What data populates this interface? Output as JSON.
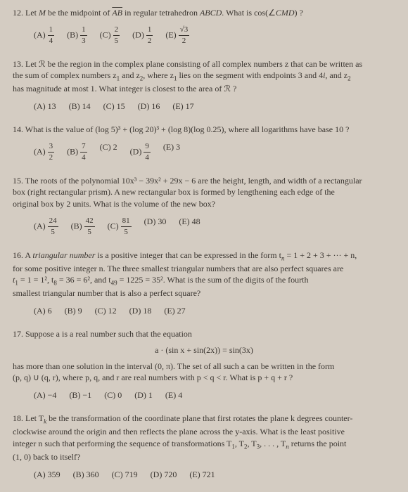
{
  "questions": [
    {
      "num": "12.",
      "text_before": "Let ",
      "text_mid": " be the midpoint of ",
      "text_after": " in regular tetrahedron ",
      "tetra": "ABCD",
      "text_end": ". What is cos(∠",
      "angle": "CMD",
      "text_close": ") ?",
      "choices": {
        "A": {
          "label": "(A)",
          "num": "1",
          "den": "4"
        },
        "B": {
          "label": "(B)",
          "num": "1",
          "den": "3"
        },
        "C": {
          "label": "(C)",
          "num": "2",
          "den": "5"
        },
        "D": {
          "label": "(D)",
          "num": "1",
          "den": "2"
        },
        "E": {
          "label": "(E)",
          "num": "√3",
          "den": "2"
        }
      }
    },
    {
      "num": "13.",
      "line1": "Let ℛ be the region in the complex plane consisting of all complex numbers z that can be written as",
      "line2a": "the sum of complex numbers z",
      "line2b": " and z",
      "line2c": ", where z",
      "line2d": " lies on the segment with endpoints 3 and 4",
      "line2e": ", and z",
      "line3": "has magnitude at most 1. What integer is closest to the area of ℛ ?",
      "choices": {
        "A": "(A) 13",
        "B": "(B) 14",
        "C": "(C) 15",
        "D": "(D) 16",
        "E": "(E) 17"
      }
    },
    {
      "num": "14.",
      "text": "What is the value of (log 5)³ + (log 20)³ + (log 8)(log 0.25), where all logarithms have base 10 ?",
      "choices": {
        "A": {
          "label": "(A)",
          "num": "3",
          "den": "2"
        },
        "B": {
          "label": "(B)",
          "num": "7",
          "den": "4"
        },
        "C": "(C) 2",
        "D": {
          "label": "(D)",
          "num": "9",
          "den": "4"
        },
        "E": "(E) 3"
      }
    },
    {
      "num": "15.",
      "line1": "The roots of the polynomial 10x³ − 39x² + 29x − 6 are the height, length, and width of a rectangular",
      "line2": "box (right rectangular prism). A new rectangular box is formed by lengthening each edge of the",
      "line3": "original box by 2 units. What is the volume of the new box?",
      "choices": {
        "A": {
          "label": "(A)",
          "num": "24",
          "den": "5"
        },
        "B": {
          "label": "(B)",
          "num": "42",
          "den": "5"
        },
        "C": {
          "label": "(C)",
          "num": "81",
          "den": "5"
        },
        "D": "(D) 30",
        "E": "(E) 48"
      }
    },
    {
      "num": "16.",
      "line1a": "A ",
      "line1b": "triangular number",
      "line1c": " is a positive integer that can be expressed in the form t",
      "line1d": " = 1 + 2 + 3 + ··· + n,",
      "line2": "for some positive integer n. The three smallest triangular numbers that are also perfect squares are",
      "line3a": "t",
      "line3b": " = 1 = 1², t",
      "line3c": " = 36 = 6², and t",
      "line3d": " = 1225 = 35². What is the sum of the digits of the fourth",
      "line4": "smallest triangular number that is also a perfect square?",
      "choices": {
        "A": "(A) 6",
        "B": "(B) 9",
        "C": "(C) 12",
        "D": "(D) 18",
        "E": "(E) 27"
      }
    },
    {
      "num": "17.",
      "line1": "Suppose a is a real number such that the equation",
      "eq": "a · (sin x + sin(2x)) = sin(3x)",
      "line2": "has more than one solution in the interval (0, π). The set of all such a can be written in the form",
      "line3": "(p, q) ∪ (q, r), where p, q, and r are real numbers with p < q < r. What is p + q + r ?",
      "choices": {
        "A": "(A) −4",
        "B": "(B) −1",
        "C": "(C) 0",
        "D": "(D) 1",
        "E": "(E) 4"
      }
    },
    {
      "num": "18.",
      "line1a": "Let T",
      "line1b": " be the transformation of the coordinate plane that first rotates the plane k degrees counter-",
      "line2": "clockwise around the origin and then reflects the plane across the y-axis. What is the least positive",
      "line3a": "integer n such that performing the sequence of transformations T",
      "line3b": ", T",
      "line3c": ", T",
      "line3d": ", . . . , T",
      "line3e": " returns the point",
      "line4": "(1, 0) back to itself?",
      "choices": {
        "A": "(A) 359",
        "B": "(B) 360",
        "C": "(C) 719",
        "D": "(D) 720",
        "E": "(E) 721"
      }
    }
  ]
}
